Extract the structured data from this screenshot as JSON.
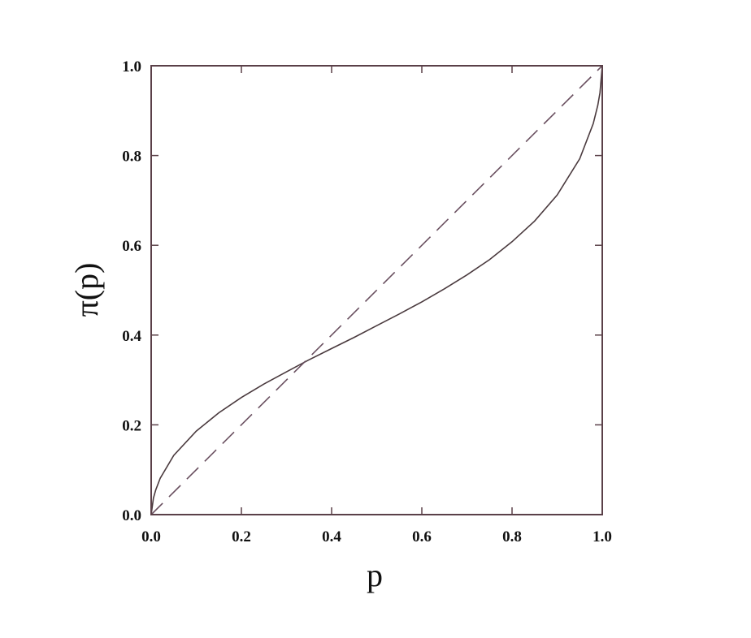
{
  "chart_data": {
    "type": "line",
    "title": "",
    "xlabel": "p",
    "ylabel": "π(p)",
    "xlim": [
      0,
      1
    ],
    "ylim": [
      0,
      1
    ],
    "xticks": [
      "0.0",
      "0.2",
      "0.4",
      "0.6",
      "0.8",
      "1.0"
    ],
    "yticks": [
      "0.0",
      "0.2",
      "0.4",
      "0.6",
      "0.8",
      "1.0"
    ],
    "grid": false,
    "legend": "none",
    "series": [
      {
        "style": "solid",
        "color": "#4a3a3e",
        "x": [
          0,
          0.005,
          0.01,
          0.02,
          0.05,
          0.1,
          0.15,
          0.2,
          0.25,
          0.3,
          0.35,
          0.4,
          0.45,
          0.5,
          0.55,
          0.6,
          0.65,
          0.7,
          0.75,
          0.8,
          0.85,
          0.9,
          0.95,
          0.98,
          0.99,
          0.995,
          1
        ],
        "y": [
          0,
          0.037,
          0.055,
          0.081,
          0.132,
          0.186,
          0.227,
          0.261,
          0.291,
          0.318,
          0.345,
          0.37,
          0.395,
          0.421,
          0.447,
          0.474,
          0.503,
          0.534,
          0.568,
          0.608,
          0.654,
          0.712,
          0.793,
          0.871,
          0.912,
          0.94,
          1
        ]
      },
      {
        "style": "dashed",
        "color": "#6a5060",
        "x": [
          0,
          1
        ],
        "y": [
          0,
          1
        ]
      }
    ]
  }
}
